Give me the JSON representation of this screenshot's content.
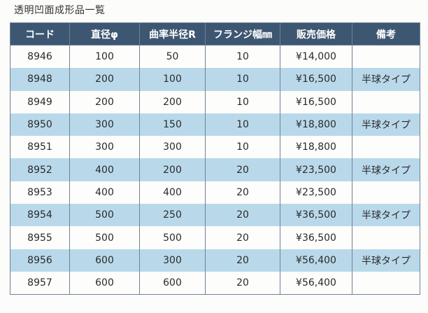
{
  "title": "透明凹面成形品一覧",
  "table": {
    "headers": [
      "コード",
      "直径φ",
      "曲率半径R",
      "フランジ幅㎜",
      "販売価格",
      "備考"
    ],
    "rows": [
      [
        "8946",
        "100",
        "50",
        "10",
        "¥14,000",
        ""
      ],
      [
        "8948",
        "200",
        "100",
        "10",
        "¥16,500",
        "半球タイプ"
      ],
      [
        "8949",
        "200",
        "200",
        "10",
        "¥16,500",
        ""
      ],
      [
        "8950",
        "300",
        "150",
        "10",
        "¥18,800",
        "半球タイプ"
      ],
      [
        "8951",
        "300",
        "300",
        "10",
        "¥18,800",
        ""
      ],
      [
        "8952",
        "400",
        "200",
        "20",
        "¥23,500",
        "半球タイプ"
      ],
      [
        "8953",
        "400",
        "400",
        "20",
        "¥23,500",
        ""
      ],
      [
        "8954",
        "500",
        "250",
        "20",
        "¥36,500",
        "半球タイプ"
      ],
      [
        "8955",
        "500",
        "500",
        "20",
        "¥36,500",
        ""
      ],
      [
        "8956",
        "600",
        "300",
        "20",
        "¥56,400",
        "半球タイプ"
      ],
      [
        "8957",
        "600",
        "600",
        "20",
        "¥56,400",
        ""
      ]
    ]
  },
  "colors": {
    "header_bg": "#3d5772",
    "header_text": "#ffffff",
    "row_alt_bg": "#b9d9ea",
    "row_bg": "#fdfdfc"
  }
}
